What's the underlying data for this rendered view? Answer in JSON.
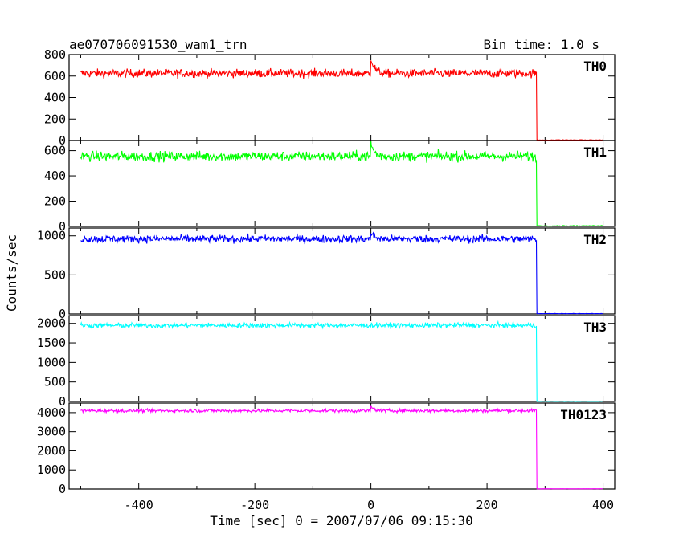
{
  "header": {
    "title": "ae070706091530_wam1_trn",
    "bin_time": "Bin time: 1.0 s"
  },
  "chart_data": {
    "type": "line",
    "title": "ae070706091530_wam1_trn",
    "xlabel": "Time [sec] 0 = 2007/07/06 09:15:30",
    "ylabel": "Counts/sec",
    "xlim": [
      -520,
      420
    ],
    "x_ticks": [
      -400,
      -200,
      0,
      200,
      400
    ],
    "x_range_data": [
      -500,
      400
    ],
    "drop_time": 285,
    "burst_time": 0,
    "grid": false,
    "panels": [
      {
        "name": "TH0",
        "color": "#ff0000",
        "ylim": [
          0,
          800
        ],
        "yticks": [
          0,
          200,
          400,
          600,
          800
        ],
        "level": 625,
        "noise": 28,
        "burst": 150,
        "post_drop": 5
      },
      {
        "name": "TH1",
        "color": "#00ff00",
        "ylim": [
          0,
          680
        ],
        "yticks": [
          0,
          200,
          400,
          600
        ],
        "level": 555,
        "noise": 28,
        "burst": 100,
        "post_drop": 5
      },
      {
        "name": "TH2",
        "color": "#0000ff",
        "ylim": [
          0,
          1100
        ],
        "yticks": [
          0,
          500,
          1000
        ],
        "level": 960,
        "noise": 35,
        "burst": 80,
        "post_drop": 5
      },
      {
        "name": "TH3",
        "color": "#00ffff",
        "ylim": [
          0,
          2200
        ],
        "yticks": [
          0,
          500,
          1000,
          1500,
          2000
        ],
        "level": 1950,
        "noise": 45,
        "burst": 0,
        "post_drop": 5
      },
      {
        "name": "TH0123",
        "color": "#ff00ff",
        "ylim": [
          0,
          4500
        ],
        "yticks": [
          0,
          1000,
          2000,
          3000,
          4000
        ],
        "level": 4100,
        "noise": 60,
        "burst": 200,
        "post_drop": 10
      }
    ]
  }
}
